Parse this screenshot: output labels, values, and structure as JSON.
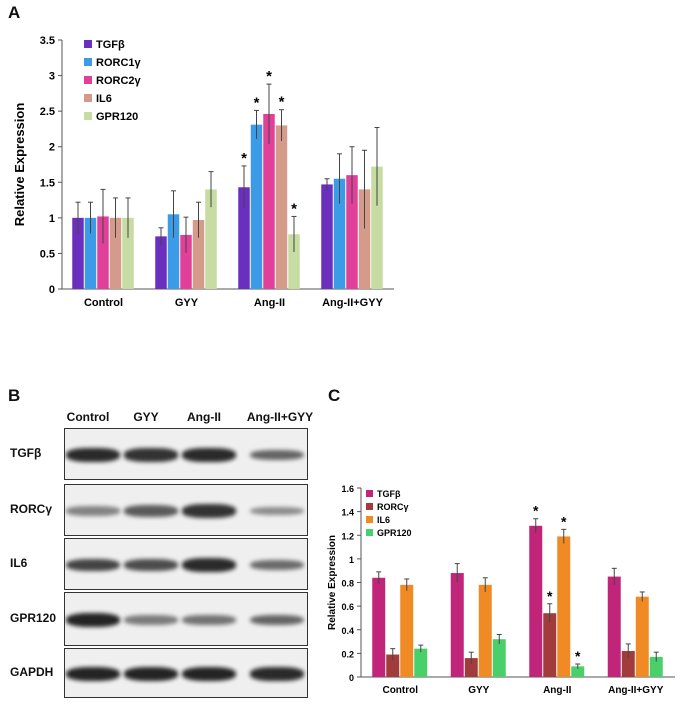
{
  "panel_labels": {
    "a": "A",
    "b": "B",
    "c": "C"
  },
  "chart_data": [
    {
      "type": "bar",
      "panel": "A",
      "ylabel": "Relative Expression",
      "xlabel": "",
      "ylim": [
        0,
        3.5
      ],
      "yticks": [
        "0",
        "0.5",
        "1",
        "1.5",
        "2",
        "2.5",
        "3",
        "3.5"
      ],
      "categories": [
        "Control",
        "GYY",
        "Ang-II",
        "Ang-II+GYY"
      ],
      "legend_position": "top-left",
      "grid": false,
      "series": [
        {
          "name": "TGFβ",
          "color": "#6a2fbf",
          "values": [
            1.0,
            0.74,
            1.43,
            1.47
          ],
          "errors": [
            0.22,
            0.12,
            0.3,
            0.08
          ]
        },
        {
          "name": "RORC1γ",
          "color": "#3c9be6",
          "values": [
            1.0,
            1.05,
            2.31,
            1.55
          ],
          "errors": [
            0.22,
            0.33,
            0.2,
            0.35
          ]
        },
        {
          "name": "RORC2γ",
          "color": "#e0409a",
          "values": [
            1.02,
            0.76,
            2.46,
            1.6
          ],
          "errors": [
            0.38,
            0.25,
            0.42,
            0.4
          ]
        },
        {
          "name": "IL6",
          "color": "#d49a8a",
          "values": [
            1.0,
            0.97,
            2.3,
            1.4
          ],
          "errors": [
            0.28,
            0.25,
            0.22,
            0.55
          ]
        },
        {
          "name": "GPR120",
          "color": "#c6dca2",
          "values": [
            1.0,
            1.4,
            0.77,
            1.72
          ],
          "errors": [
            0.28,
            0.25,
            0.25,
            0.55
          ]
        }
      ],
      "significance": [
        {
          "category": "Ang-II",
          "series": "TGFβ",
          "text": "*"
        },
        {
          "category": "Ang-II",
          "series": "RORC1γ",
          "text": "*"
        },
        {
          "category": "Ang-II",
          "series": "RORC2γ",
          "text": "*"
        },
        {
          "category": "Ang-II",
          "series": "IL6",
          "text": "*"
        },
        {
          "category": "Ang-II",
          "series": "GPR120",
          "text": "*"
        }
      ]
    },
    {
      "type": "bar",
      "panel": "C",
      "ylabel": "Relative Expression",
      "xlabel": "",
      "ylim": [
        0,
        1.6
      ],
      "yticks": [
        "0",
        "0.2",
        "0.4",
        "0.6",
        "0.8",
        "1",
        "1.2",
        "1.4",
        "1.6"
      ],
      "categories": [
        "Control",
        "GYY",
        "Ang-II",
        "Ang-II+GYY"
      ],
      "legend_position": "top-left",
      "grid": false,
      "series": [
        {
          "name": "TGFβ",
          "color": "#c0257a",
          "values": [
            0.84,
            0.88,
            1.28,
            0.85
          ],
          "errors": [
            0.05,
            0.08,
            0.06,
            0.07
          ]
        },
        {
          "name": "RORCγ",
          "color": "#a23c3c",
          "values": [
            0.19,
            0.16,
            0.54,
            0.22
          ],
          "errors": [
            0.05,
            0.05,
            0.08,
            0.06
          ]
        },
        {
          "name": "IL6",
          "color": "#f08a24",
          "values": [
            0.78,
            0.78,
            1.19,
            0.68
          ],
          "errors": [
            0.05,
            0.06,
            0.06,
            0.04
          ]
        },
        {
          "name": "GPR120",
          "color": "#4ad06a",
          "values": [
            0.24,
            0.32,
            0.09,
            0.17
          ],
          "errors": [
            0.03,
            0.04,
            0.02,
            0.04
          ]
        }
      ],
      "significance": [
        {
          "category": "Ang-II",
          "series": "TGFβ",
          "text": "*"
        },
        {
          "category": "Ang-II",
          "series": "RORCγ",
          "text": "*"
        },
        {
          "category": "Ang-II",
          "series": "IL6",
          "text": "*"
        },
        {
          "category": "Ang-II",
          "series": "GPR120",
          "text": "*"
        }
      ]
    }
  ],
  "blot": {
    "lanes": [
      "Control",
      "GYY",
      "Ang-II",
      "Ang-II+GYY"
    ],
    "rows": [
      {
        "label": "TGFβ",
        "intensity": [
          0.9,
          0.85,
          0.9,
          0.55
        ]
      },
      {
        "label": "RORCγ",
        "intensity": [
          0.35,
          0.6,
          0.85,
          0.3
        ]
      },
      {
        "label": "IL6",
        "intensity": [
          0.75,
          0.7,
          0.9,
          0.5
        ]
      },
      {
        "label": "GPR120",
        "intensity": [
          0.95,
          0.4,
          0.45,
          0.55
        ]
      },
      {
        "label": "GAPDH",
        "intensity": [
          0.95,
          0.95,
          0.95,
          0.9
        ]
      }
    ]
  }
}
